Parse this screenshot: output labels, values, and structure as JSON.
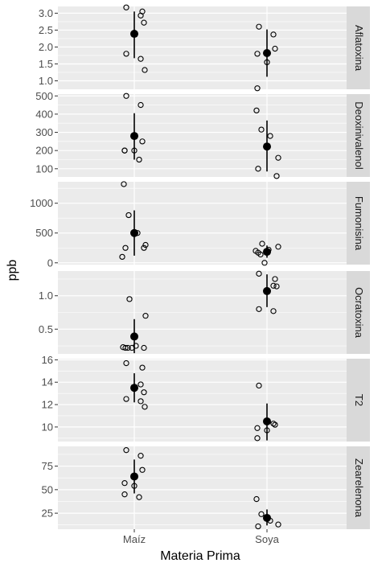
{
  "chart_data": {
    "type": "scatter",
    "xlabel": "Materia Prima",
    "ylabel": "ppb",
    "categories": [
      "Maíz",
      "Soya"
    ],
    "facets": [
      {
        "name": "Aflatoxina",
        "ylim": [
          0.75,
          3.2
        ],
        "ticks": [
          1.0,
          1.5,
          2.0,
          2.5,
          3.0
        ],
        "tick_labels": [
          "1.0",
          "1.5",
          "2.0",
          "2.5",
          "3.0"
        ],
        "points": {
          "Maíz": [
            3.17,
            3.05,
            2.93,
            2.72,
            1.8,
            1.65,
            1.32
          ],
          "Soya": [
            2.6,
            2.37,
            1.95,
            1.8,
            1.55,
            0.78
          ]
        },
        "summary": {
          "Maíz": {
            "mean": 2.39,
            "low": 1.67,
            "high": 3.05
          },
          "Soya": {
            "mean": 1.82,
            "low": 1.12,
            "high": 2.52
          }
        }
      },
      {
        "name": "Deoxinivalenol",
        "ylim": [
          55,
          510
        ],
        "ticks": [
          100,
          200,
          300,
          400,
          500
        ],
        "tick_labels": [
          "100",
          "200",
          "300",
          "400",
          "500"
        ],
        "points": {
          "Maíz": [
            500,
            450,
            250,
            200,
            200,
            200,
            150
          ],
          "Soya": [
            420,
            315,
            280,
            160,
            100,
            60
          ]
        },
        "summary": {
          "Maíz": {
            "mean": 280,
            "low": 150,
            "high": 405
          },
          "Soya": {
            "mean": 222,
            "low": 85,
            "high": 365
          }
        }
      },
      {
        "name": "Fumonisina",
        "ylim": [
          -30,
          1360
        ],
        "ticks": [
          0,
          500,
          1000
        ],
        "tick_labels": [
          "0",
          "500",
          "1000"
        ],
        "points": {
          "Maíz": [
            1320,
            800,
            500,
            300,
            250,
            250,
            100
          ],
          "Soya": [
            320,
            270,
            220,
            200,
            170,
            140,
            0
          ]
        },
        "summary": {
          "Maíz": {
            "mean": 500,
            "low": 120,
            "high": 880
          },
          "Soya": {
            "mean": 185,
            "low": 85,
            "high": 290
          }
        }
      },
      {
        "name": "Ocratoxina",
        "ylim": [
          0.13,
          1.37
        ],
        "ticks": [
          0.5,
          1.0
        ],
        "tick_labels": [
          "0.5",
          "1.0"
        ],
        "points": {
          "Maíz": [
            0.95,
            0.7,
            0.25,
            0.23,
            0.22,
            0.22,
            0.22,
            0.22
          ],
          "Soya": [
            1.33,
            1.25,
            1.15,
            1.14,
            0.8,
            0.77
          ]
        },
        "summary": {
          "Maíz": {
            "mean": 0.39,
            "low": 0.14,
            "high": 0.65
          },
          "Soya": {
            "mean": 1.07,
            "low": 0.83,
            "high": 1.32
          }
        }
      },
      {
        "name": "T2",
        "ylim": [
          8.7,
          16.1
        ],
        "ticks": [
          10,
          12,
          14,
          16
        ],
        "tick_labels": [
          "10",
          "12",
          "14",
          "16"
        ],
        "points": {
          "Maíz": [
            15.7,
            15.3,
            13.8,
            13.1,
            12.5,
            12.3,
            11.8
          ],
          "Soya": [
            13.7,
            10.3,
            10.2,
            9.9,
            9.7,
            9.0
          ]
        },
        "summary": {
          "Maíz": {
            "mean": 13.5,
            "low": 12.2,
            "high": 14.8
          },
          "Soya": {
            "mean": 10.5,
            "low": 8.8,
            "high": 12.1
          }
        }
      },
      {
        "name": "Zearelenona",
        "ylim": [
          8,
          96
        ],
        "ticks": [
          25,
          50,
          75
        ],
        "tick_labels": [
          "25",
          "50",
          "75"
        ],
        "points": {
          "Maíz": [
            92,
            86,
            71,
            57,
            54,
            45,
            42
          ],
          "Soya": [
            40,
            24,
            17,
            13,
            11
          ]
        },
        "summary": {
          "Maíz": {
            "mean": 64,
            "low": 46,
            "high": 82
          },
          "Soya": {
            "mean": 20,
            "low": 12,
            "high": 29
          }
        }
      }
    ]
  }
}
